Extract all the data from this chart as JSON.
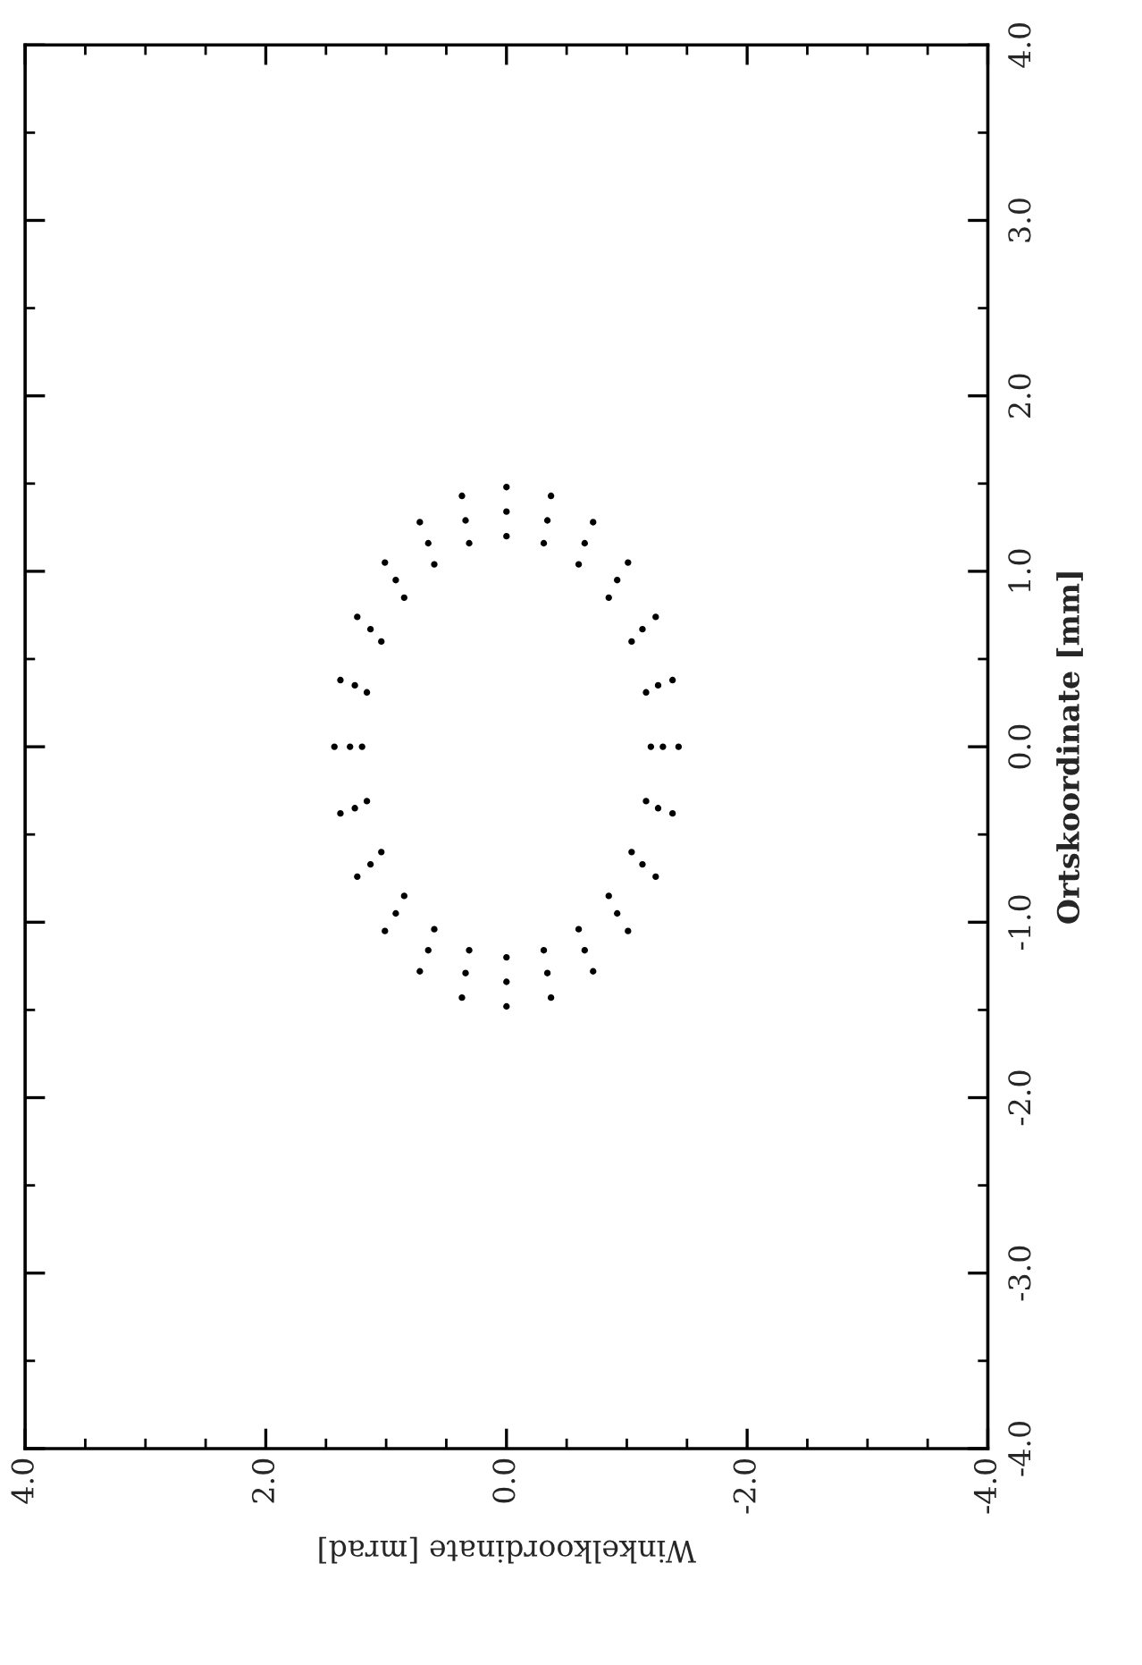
{
  "chart_data": {
    "type": "scatter",
    "xlabel": "Winkelkoordinate [mrad]",
    "ylabel": "Ortskoordinate [mm]",
    "xlim": [
      4,
      -4
    ],
    "ylim": [
      -4,
      4
    ],
    "xticks": [
      {
        "value": 4,
        "label": "4.0"
      },
      {
        "value": 3.5,
        "label": null
      },
      {
        "value": 3,
        "label": null
      },
      {
        "value": 2.5,
        "label": null
      },
      {
        "value": 2,
        "label": "2.0"
      },
      {
        "value": 1.5,
        "label": null
      },
      {
        "value": 1,
        "label": null
      },
      {
        "value": 0.5,
        "label": null
      },
      {
        "value": 0,
        "label": "0.0"
      },
      {
        "value": -0.5,
        "label": null
      },
      {
        "value": -1,
        "label": null
      },
      {
        "value": -1.5,
        "label": null
      },
      {
        "value": -2,
        "label": "-2.0"
      },
      {
        "value": -2.5,
        "label": null
      },
      {
        "value": -3,
        "label": null
      },
      {
        "value": -3.5,
        "label": null
      },
      {
        "value": -4,
        "label": "-4.0"
      }
    ],
    "yticks": [
      {
        "value": -4,
        "label": "-4.0"
      },
      {
        "value": -3.5,
        "label": null
      },
      {
        "value": -3,
        "label": "-3.0"
      },
      {
        "value": -2.5,
        "label": null
      },
      {
        "value": -2,
        "label": "-2.0"
      },
      {
        "value": -1.5,
        "label": null
      },
      {
        "value": -1,
        "label": "-1.0"
      },
      {
        "value": -0.5,
        "label": null
      },
      {
        "value": 0,
        "label": "0.0"
      },
      {
        "value": 0.5,
        "label": null
      },
      {
        "value": 1,
        "label": "1.0"
      },
      {
        "value": 1.5,
        "label": null
      },
      {
        "value": 2,
        "label": "2.0"
      },
      {
        "value": 2.5,
        "label": null
      },
      {
        "value": 3,
        "label": "3.0"
      },
      {
        "value": 3.5,
        "label": null
      },
      {
        "value": 4,
        "label": "4.0"
      }
    ],
    "series": [
      {
        "color": "#000000",
        "x": [
          1.43,
          1.38,
          1.24,
          1.01,
          0.72,
          0.37,
          0,
          -0.37,
          -0.72,
          -1.01,
          -1.24,
          -1.38,
          -1.43,
          -1.38,
          -1.24,
          -1.01,
          -0.72,
          -0.37,
          0,
          0.37,
          0.72,
          1.01,
          1.24,
          1.38,
          1.3,
          1.26,
          1.13,
          0.92,
          0.65,
          0.34,
          0,
          -0.34,
          -0.65,
          -0.92,
          -1.13,
          -1.26,
          -1.3,
          -1.26,
          -1.13,
          -0.92,
          -0.65,
          -0.34,
          0,
          0.34,
          0.65,
          0.92,
          1.13,
          1.26,
          1.2,
          1.16,
          1.04,
          0.85,
          0.6,
          0.31,
          0,
          -0.31,
          -0.6,
          -0.85,
          -1.04,
          -1.16,
          -1.2,
          -1.16,
          -1.04,
          -0.85,
          -0.6,
          -0.31,
          0,
          0.31,
          0.6,
          0.85,
          1.04,
          1.16
        ],
        "values": [
          0,
          0.38,
          0.74,
          1.05,
          1.28,
          1.43,
          1.48,
          1.43,
          1.28,
          1.05,
          0.74,
          0.38,
          0,
          -0.38,
          -0.74,
          -1.05,
          -1.28,
          -1.43,
          -1.48,
          -1.43,
          -1.28,
          -1.05,
          -0.74,
          -0.38,
          0,
          0.35,
          0.67,
          0.95,
          1.16,
          1.29,
          1.34,
          1.29,
          1.16,
          0.95,
          0.67,
          0.35,
          0,
          -0.35,
          -0.67,
          -0.95,
          -1.16,
          -1.29,
          -1.34,
          -1.29,
          -1.16,
          -0.95,
          -0.67,
          -0.35,
          0,
          0.31,
          0.6,
          0.85,
          1.04,
          1.16,
          1.2,
          1.16,
          1.04,
          0.85,
          0.6,
          0.31,
          0,
          -0.31,
          -0.6,
          -0.85,
          -1.04,
          -1.16,
          -1.2,
          -1.16,
          -1.04,
          -0.85,
          -0.6,
          -0.31
        ]
      }
    ]
  }
}
